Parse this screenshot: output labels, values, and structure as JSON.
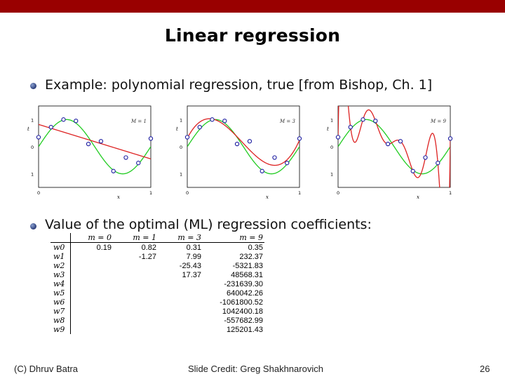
{
  "slide": {
    "title": "Linear regression",
    "bullet1": "Example: polynomial regression, true [from Bishop, Ch. 1]",
    "bullet2": "Value of the optimal (ML) regression coefficients:",
    "footer_left": "(C) Dhruv Batra",
    "footer_center": "Slide Credit: Greg Shakhnarovich",
    "page_number": "26",
    "accent_color": "#990000"
  },
  "chart_data": [
    {
      "type": "line",
      "legend": "M = 1",
      "xlabel": "x",
      "ylabel": "t",
      "xlim": [
        0,
        1
      ],
      "ylim": [
        -1.5,
        1.5
      ],
      "x_ticks": [
        "0",
        "1"
      ],
      "y_ticks": [
        "1",
        "0",
        "1"
      ],
      "points": {
        "x": [
          0.0,
          0.111,
          0.222,
          0.333,
          0.444,
          0.556,
          0.667,
          0.778,
          0.889,
          1.0
        ],
        "y": [
          0.35,
          0.72,
          1.0,
          0.95,
          0.1,
          0.2,
          -0.9,
          -0.4,
          -0.6,
          0.3
        ]
      },
      "series": [
        {
          "name": "true",
          "color": "#22cc22",
          "function": "sin(2*pi*x)"
        },
        {
          "name": "fit",
          "color": "#dd2222",
          "coefficients": [
            0.82,
            -1.27
          ]
        }
      ]
    },
    {
      "type": "line",
      "legend": "M = 3",
      "xlabel": "x",
      "ylabel": "t",
      "xlim": [
        0,
        1
      ],
      "ylim": [
        -1.5,
        1.5
      ],
      "x_ticks": [
        "0",
        "1"
      ],
      "y_ticks": [
        "1",
        "0",
        "1"
      ],
      "points": {
        "x": [
          0.0,
          0.111,
          0.222,
          0.333,
          0.444,
          0.556,
          0.667,
          0.778,
          0.889,
          1.0
        ],
        "y": [
          0.35,
          0.72,
          1.0,
          0.95,
          0.1,
          0.2,
          -0.9,
          -0.4,
          -0.6,
          0.3
        ]
      },
      "series": [
        {
          "name": "true",
          "color": "#22cc22",
          "function": "sin(2*pi*x)"
        },
        {
          "name": "fit",
          "color": "#dd2222",
          "coefficients": [
            0.31,
            7.99,
            -25.43,
            17.37
          ]
        }
      ]
    },
    {
      "type": "line",
      "legend": "M = 9",
      "xlabel": "x",
      "ylabel": "t",
      "xlim": [
        0,
        1
      ],
      "ylim": [
        -1.5,
        1.5
      ],
      "x_ticks": [
        "0",
        "1"
      ],
      "y_ticks": [
        "1",
        "0",
        "1"
      ],
      "points": {
        "x": [
          0.0,
          0.111,
          0.222,
          0.333,
          0.444,
          0.556,
          0.667,
          0.778,
          0.889,
          1.0
        ],
        "y": [
          0.35,
          0.72,
          1.0,
          0.95,
          0.1,
          0.2,
          -0.9,
          -0.4,
          -0.6,
          0.3
        ]
      },
      "series": [
        {
          "name": "true",
          "color": "#22cc22",
          "function": "sin(2*pi*x)"
        },
        {
          "name": "fit",
          "color": "#dd2222",
          "interpolates_points": true
        }
      ]
    }
  ],
  "table": {
    "headers": [
      "m = 0",
      "m = 1",
      "m = 3",
      "m = 9"
    ],
    "row_labels": [
      "w0",
      "w1",
      "w2",
      "w3",
      "w4",
      "w5",
      "w6",
      "w7",
      "w8",
      "w9"
    ],
    "rows": [
      [
        "0.19",
        "0.82",
        "0.31",
        "0.35"
      ],
      [
        "",
        "-1.27",
        "7.99",
        "232.37"
      ],
      [
        "",
        "",
        "-25.43",
        "-5321.83"
      ],
      [
        "",
        "",
        "17.37",
        "48568.31"
      ],
      [
        "",
        "",
        "",
        "-231639.30"
      ],
      [
        "",
        "",
        "",
        "640042.26"
      ],
      [
        "",
        "",
        "",
        "-1061800.52"
      ],
      [
        "",
        "",
        "",
        "1042400.18"
      ],
      [
        "",
        "",
        "",
        "-557682.99"
      ],
      [
        "",
        "",
        "",
        "125201.43"
      ]
    ]
  }
}
